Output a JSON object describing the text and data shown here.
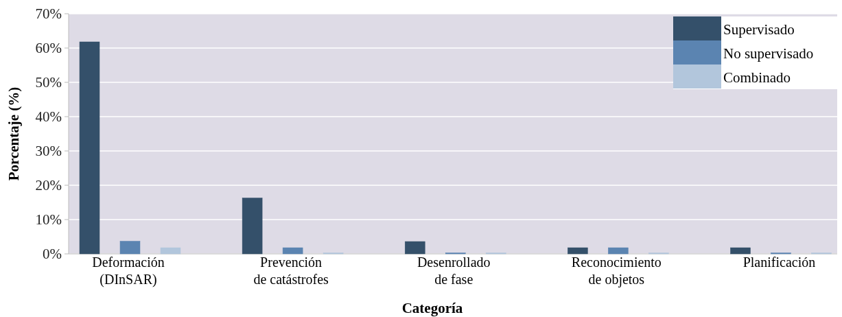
{
  "chart_data": {
    "type": "bar",
    "xlabel": "Categoría",
    "ylabel": "Porcentaje (%)",
    "categories": [
      "Deformación\n(DInSAR)",
      "Prevención\nde catástrofes",
      "Desenrollado\nde fase",
      "Reconocimiento\nde objetos",
      "Planificación"
    ],
    "series": [
      {
        "name": "Supervisado",
        "color": "#34506a",
        "values": [
          61.8,
          16.3,
          3.6,
          1.8,
          1.8
        ]
      },
      {
        "name": "No supervisado",
        "color": "#5b84b1",
        "values": [
          3.7,
          1.8,
          0.3,
          1.8,
          0.3
        ]
      },
      {
        "name": "Combinado",
        "color": "#b2c6dc",
        "values": [
          1.8,
          0.3,
          0.3,
          0.3,
          0.3
        ]
      }
    ],
    "ylim": [
      0,
      70
    ],
    "yticks": [
      {
        "value": 0,
        "label": "0%"
      },
      {
        "value": 10,
        "label": "10%"
      },
      {
        "value": 20,
        "label": "20%"
      },
      {
        "value": 30,
        "label": "30%"
      },
      {
        "value": 40,
        "label": "40%"
      },
      {
        "value": 50,
        "label": "50%"
      },
      {
        "value": 60,
        "label": "60%"
      },
      {
        "value": 70,
        "label": "70%"
      }
    ],
    "grid": "y",
    "legend": "top right"
  }
}
